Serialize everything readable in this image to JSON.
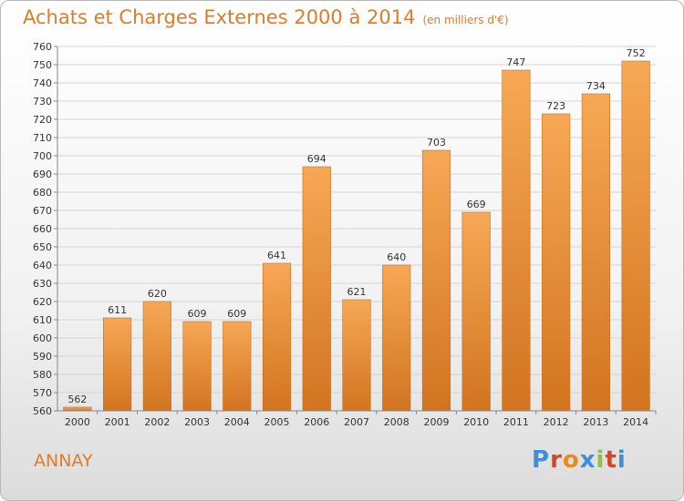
{
  "header": {
    "title": "Achats et Charges Externes 2000 à 2014",
    "subtitle": "(en milliers d'€)"
  },
  "footer": {
    "commune": "ANNAY",
    "logo": "Proxiti"
  },
  "colors": {
    "title": "#e07b27",
    "bar_light": "#f7a855",
    "bar_dark": "#d27420",
    "logo_letters": [
      "#3d8fd6",
      "#d6452a",
      "#e88a1d",
      "#3d8fd6",
      "#8bc34a",
      "#d6452a",
      "#3d8fd6"
    ]
  },
  "chart_data": {
    "type": "bar",
    "title": "Achats et Charges Externes 2000 à 2014",
    "categories": [
      "2000",
      "2001",
      "2002",
      "2003",
      "2004",
      "2005",
      "2006",
      "2007",
      "2008",
      "2009",
      "2010",
      "2011",
      "2012",
      "2013",
      "2014"
    ],
    "values": [
      562,
      611,
      620,
      609,
      609,
      641,
      694,
      621,
      640,
      703,
      669,
      747,
      723,
      734,
      752
    ],
    "ylim": [
      560,
      760
    ],
    "yticks": [
      560,
      570,
      580,
      590,
      600,
      610,
      620,
      630,
      640,
      650,
      660,
      670,
      680,
      690,
      700,
      710,
      720,
      730,
      740,
      750,
      760
    ],
    "grid": true,
    "data_labels": true,
    "xlabel": "",
    "ylabel": ""
  }
}
